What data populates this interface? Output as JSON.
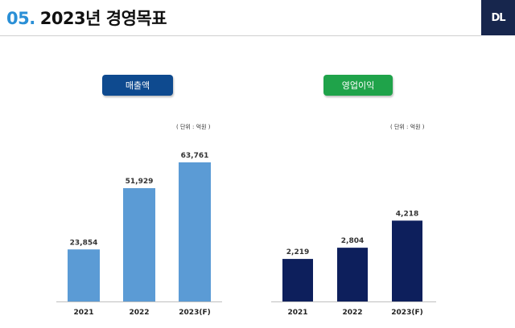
{
  "header": {
    "section_number": "05.",
    "title": "2023년 경영목표",
    "logo_text": "DL",
    "colors": {
      "section_number": "#2a8fd6",
      "logo_bg": "#17264d"
    }
  },
  "chart_data": [
    {
      "type": "bar",
      "title": "매출액",
      "unit_note": "( 단위 : 억원 )",
      "categories": [
        "2021",
        "2022",
        "2023(F)"
      ],
      "values": [
        23854,
        51929,
        63761
      ],
      "value_labels": [
        "23,854",
        "51,929",
        "63,761"
      ],
      "ylim": [
        0,
        70000
      ],
      "grid": false,
      "bar_color": "#5b9bd5",
      "title_color": "#0e4a8f"
    },
    {
      "type": "bar",
      "title": "영업이익",
      "unit_note": "( 단위 : 억원 )",
      "categories": [
        "2021",
        "2022",
        "2023(F)"
      ],
      "values": [
        2219,
        2804,
        4218
      ],
      "value_labels": [
        "2,219",
        "2,804",
        "4,218"
      ],
      "ylim": [
        0,
        6500
      ],
      "grid": false,
      "bar_color": "#0d1f5c",
      "title_color": "#1fa34a"
    }
  ]
}
